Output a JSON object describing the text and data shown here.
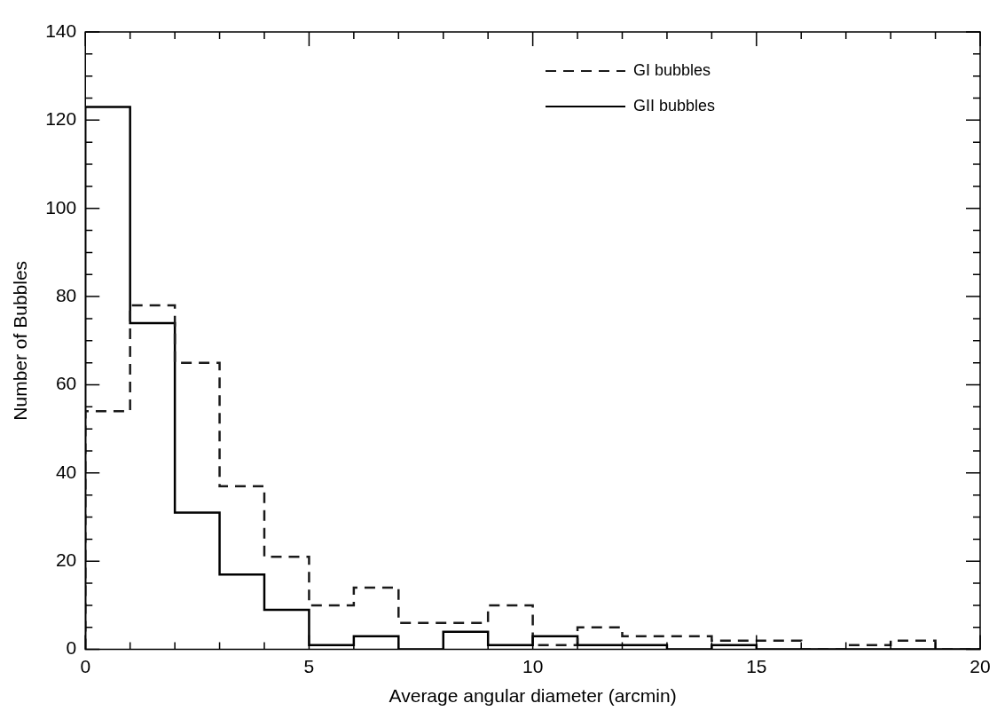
{
  "chart_data": {
    "type": "histogram",
    "xlabel": "Average angular diameter (arcmin)",
    "ylabel": "Number of Bubbles",
    "bins": [
      0,
      1,
      2,
      3,
      4,
      5,
      6,
      7,
      8,
      9,
      10,
      11,
      12,
      13,
      14,
      15,
      16,
      17,
      18,
      19,
      20
    ],
    "series": [
      {
        "name": "GI bubbles",
        "color": "#1a1a1a",
        "line_style": "dashed",
        "values": [
          54,
          78,
          65,
          37,
          21,
          10,
          14,
          6,
          6,
          10,
          1,
          5,
          3,
          3,
          2,
          2,
          0,
          1,
          2,
          0
        ]
      },
      {
        "name": "GII bubbles",
        "color": "#000000",
        "line_style": "solid",
        "values": [
          123,
          74,
          31,
          17,
          9,
          1,
          3,
          0,
          4,
          1,
          3,
          1,
          1,
          0,
          1,
          0,
          0,
          0,
          0,
          0
        ]
      }
    ],
    "xlim": [
      0,
      20
    ],
    "ylim": [
      0,
      140
    ],
    "xticks": [
      0,
      {
        "value": 1,
        "label": null
      },
      {
        "value": 2,
        "label": null
      },
      {
        "value": 3,
        "label": null
      },
      {
        "value": 4,
        "label": null
      },
      5,
      {
        "value": 6,
        "label": null
      },
      {
        "value": 7,
        "label": null
      },
      {
        "value": 8,
        "label": null
      },
      {
        "value": 9,
        "label": null
      },
      10,
      {
        "value": 11,
        "label": null
      },
      {
        "value": 12,
        "label": null
      },
      {
        "value": 13,
        "label": null
      },
      {
        "value": 14,
        "label": null
      },
      15,
      {
        "value": 16,
        "label": null
      },
      {
        "value": 17,
        "label": null
      },
      {
        "value": 18,
        "label": null
      },
      {
        "value": 19,
        "label": null
      },
      20
    ],
    "yticks": [
      0,
      {
        "value": 5,
        "label": null
      },
      {
        "value": 10,
        "label": null
      },
      {
        "value": 15,
        "label": null
      },
      20,
      {
        "value": 25,
        "label": null
      },
      {
        "value": 30,
        "label": null
      },
      {
        "value": 35,
        "label": null
      },
      40,
      {
        "value": 45,
        "label": null
      },
      {
        "value": 50,
        "label": null
      },
      {
        "value": 55,
        "label": null
      },
      60,
      {
        "value": 65,
        "label": null
      },
      {
        "value": 70,
        "label": null
      },
      {
        "value": 75,
        "label": null
      },
      80,
      {
        "value": 85,
        "label": null
      },
      {
        "value": 90,
        "label": null
      },
      {
        "value": 95,
        "label": null
      },
      100,
      {
        "value": 105,
        "label": null
      },
      {
        "value": 110,
        "label": null
      },
      {
        "value": 115,
        "label": null
      },
      120,
      {
        "value": 125,
        "label": null
      },
      {
        "value": 130,
        "label": null
      },
      {
        "value": 135,
        "label": null
      },
      140
    ],
    "grid": false,
    "legend": "top right"
  }
}
